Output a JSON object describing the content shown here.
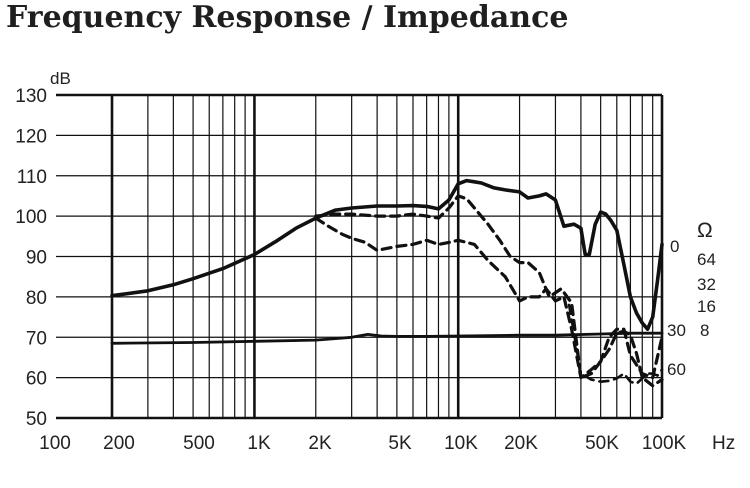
{
  "chart_data": {
    "type": "line",
    "title": "Frequency Response / Impedance",
    "ylabel": "dB",
    "xlabel": "Hz",
    "x_scale": "log",
    "xlim": [
      200,
      100000
    ],
    "ylim": [
      50,
      130
    ],
    "grid": true,
    "x_tick_labels": [
      {
        "value": 100,
        "label": "100"
      },
      {
        "value": 200,
        "label": "200"
      },
      {
        "value": 500,
        "label": "500"
      },
      {
        "value": 1000,
        "label": "1K"
      },
      {
        "value": 2000,
        "label": "2K"
      },
      {
        "value": 5000,
        "label": "5K"
      },
      {
        "value": 10000,
        "label": "10K"
      },
      {
        "value": 20000,
        "label": "20K"
      },
      {
        "value": 50000,
        "label": "50K"
      },
      {
        "value": 100000,
        "label": "100K"
      }
    ],
    "y_ticks": [
      50,
      60,
      70,
      80,
      90,
      100,
      110,
      120,
      130
    ],
    "right_label_symbol": "Ω",
    "right_labels": [
      "0",
      "64",
      "32",
      "16",
      "8",
      "30",
      "60"
    ],
    "series": [
      {
        "style": "solid",
        "width": 3.6,
        "x": [
          200,
          300,
          400,
          500,
          700,
          1000,
          1300,
          1600,
          2000,
          2500,
          3000,
          4000,
          5000,
          6000,
          7000,
          8000,
          9000,
          10000,
          11000,
          12000,
          13000,
          15000,
          17000,
          20000,
          22000,
          25000,
          27000,
          30000,
          33000,
          37000,
          40000,
          42000,
          44000,
          47000,
          50000,
          53000,
          56000,
          60000,
          65000,
          70000,
          75000,
          80000,
          85000,
          90000,
          95000,
          100000
        ],
        "y": [
          80.3,
          81.5,
          83,
          84.5,
          87,
          90.5,
          94,
          97,
          99.5,
          101.5,
          102,
          102.5,
          102.5,
          102.6,
          102.4,
          101.8,
          104,
          108,
          108.8,
          108.5,
          108.2,
          107,
          106.5,
          106,
          104.5,
          105,
          105.5,
          104,
          97.5,
          98,
          97,
          90.5,
          90.5,
          98,
          101,
          100.5,
          99,
          96.5,
          88,
          80,
          76,
          73.5,
          72,
          75,
          84,
          93
        ]
      },
      {
        "style": "dashed",
        "width": 3.2,
        "x": [
          2000,
          2500,
          3000,
          4000,
          5000,
          6000,
          7000,
          8000,
          9000,
          10000,
          11000,
          12000,
          14000,
          16000,
          18000,
          20000,
          22000,
          25000,
          28000,
          32000,
          36000,
          40000,
          45000,
          50000,
          55000,
          60000,
          65000,
          70000,
          75000,
          80000,
          90000,
          100000
        ],
        "y": [
          100,
          100.5,
          100.5,
          100,
          100,
          100.5,
          100,
          99.5,
          102,
          105,
          104.3,
          102,
          98,
          94,
          90,
          88.5,
          88.5,
          86,
          80,
          82,
          78.5,
          60,
          61,
          64,
          67,
          71,
          71.5,
          70.5,
          66,
          60,
          58,
          59.5
        ]
      },
      {
        "style": "dashed",
        "width": 3.2,
        "x": [
          2000,
          2300,
          2700,
          3000,
          3500,
          4000,
          5000,
          6000,
          7000,
          8000,
          9000,
          10000,
          12000,
          14000,
          17000,
          20000,
          22000,
          25000,
          27000,
          30000,
          33000,
          36000,
          40000,
          45000,
          50000,
          55000,
          60000,
          65000,
          70000,
          80000,
          90000,
          100000
        ],
        "y": [
          99.5,
          97.5,
          95.5,
          94.5,
          93.5,
          91.5,
          92.5,
          93,
          94,
          93,
          93.5,
          94,
          93,
          89,
          85,
          79,
          80,
          80,
          82,
          79,
          80,
          72,
          60,
          62,
          64,
          70,
          72,
          72,
          65.5,
          61,
          60,
          70
        ]
      },
      {
        "style": "solid",
        "width": 2.8,
        "x": [
          200,
          500,
          1000,
          2000,
          3000,
          3600,
          4200,
          5000,
          7000,
          10000,
          20000,
          30000,
          50000,
          70000,
          100000
        ],
        "y": [
          68.5,
          68.7,
          69,
          69.3,
          70,
          70.7,
          70.3,
          70.2,
          70.2,
          70.3,
          70.5,
          70.5,
          70.8,
          71,
          71
        ]
      },
      {
        "style": "dashed",
        "width": 2.6,
        "x": [
          35000,
          40000,
          45000,
          50000,
          55000,
          60000,
          65000,
          70000,
          75000,
          80000,
          85000,
          90000,
          95000,
          100000
        ],
        "y": [
          78,
          61,
          59.5,
          59,
          59.2,
          59.8,
          61,
          59,
          58.5,
          59.8,
          61,
          61,
          60.5,
          62
        ]
      }
    ]
  }
}
